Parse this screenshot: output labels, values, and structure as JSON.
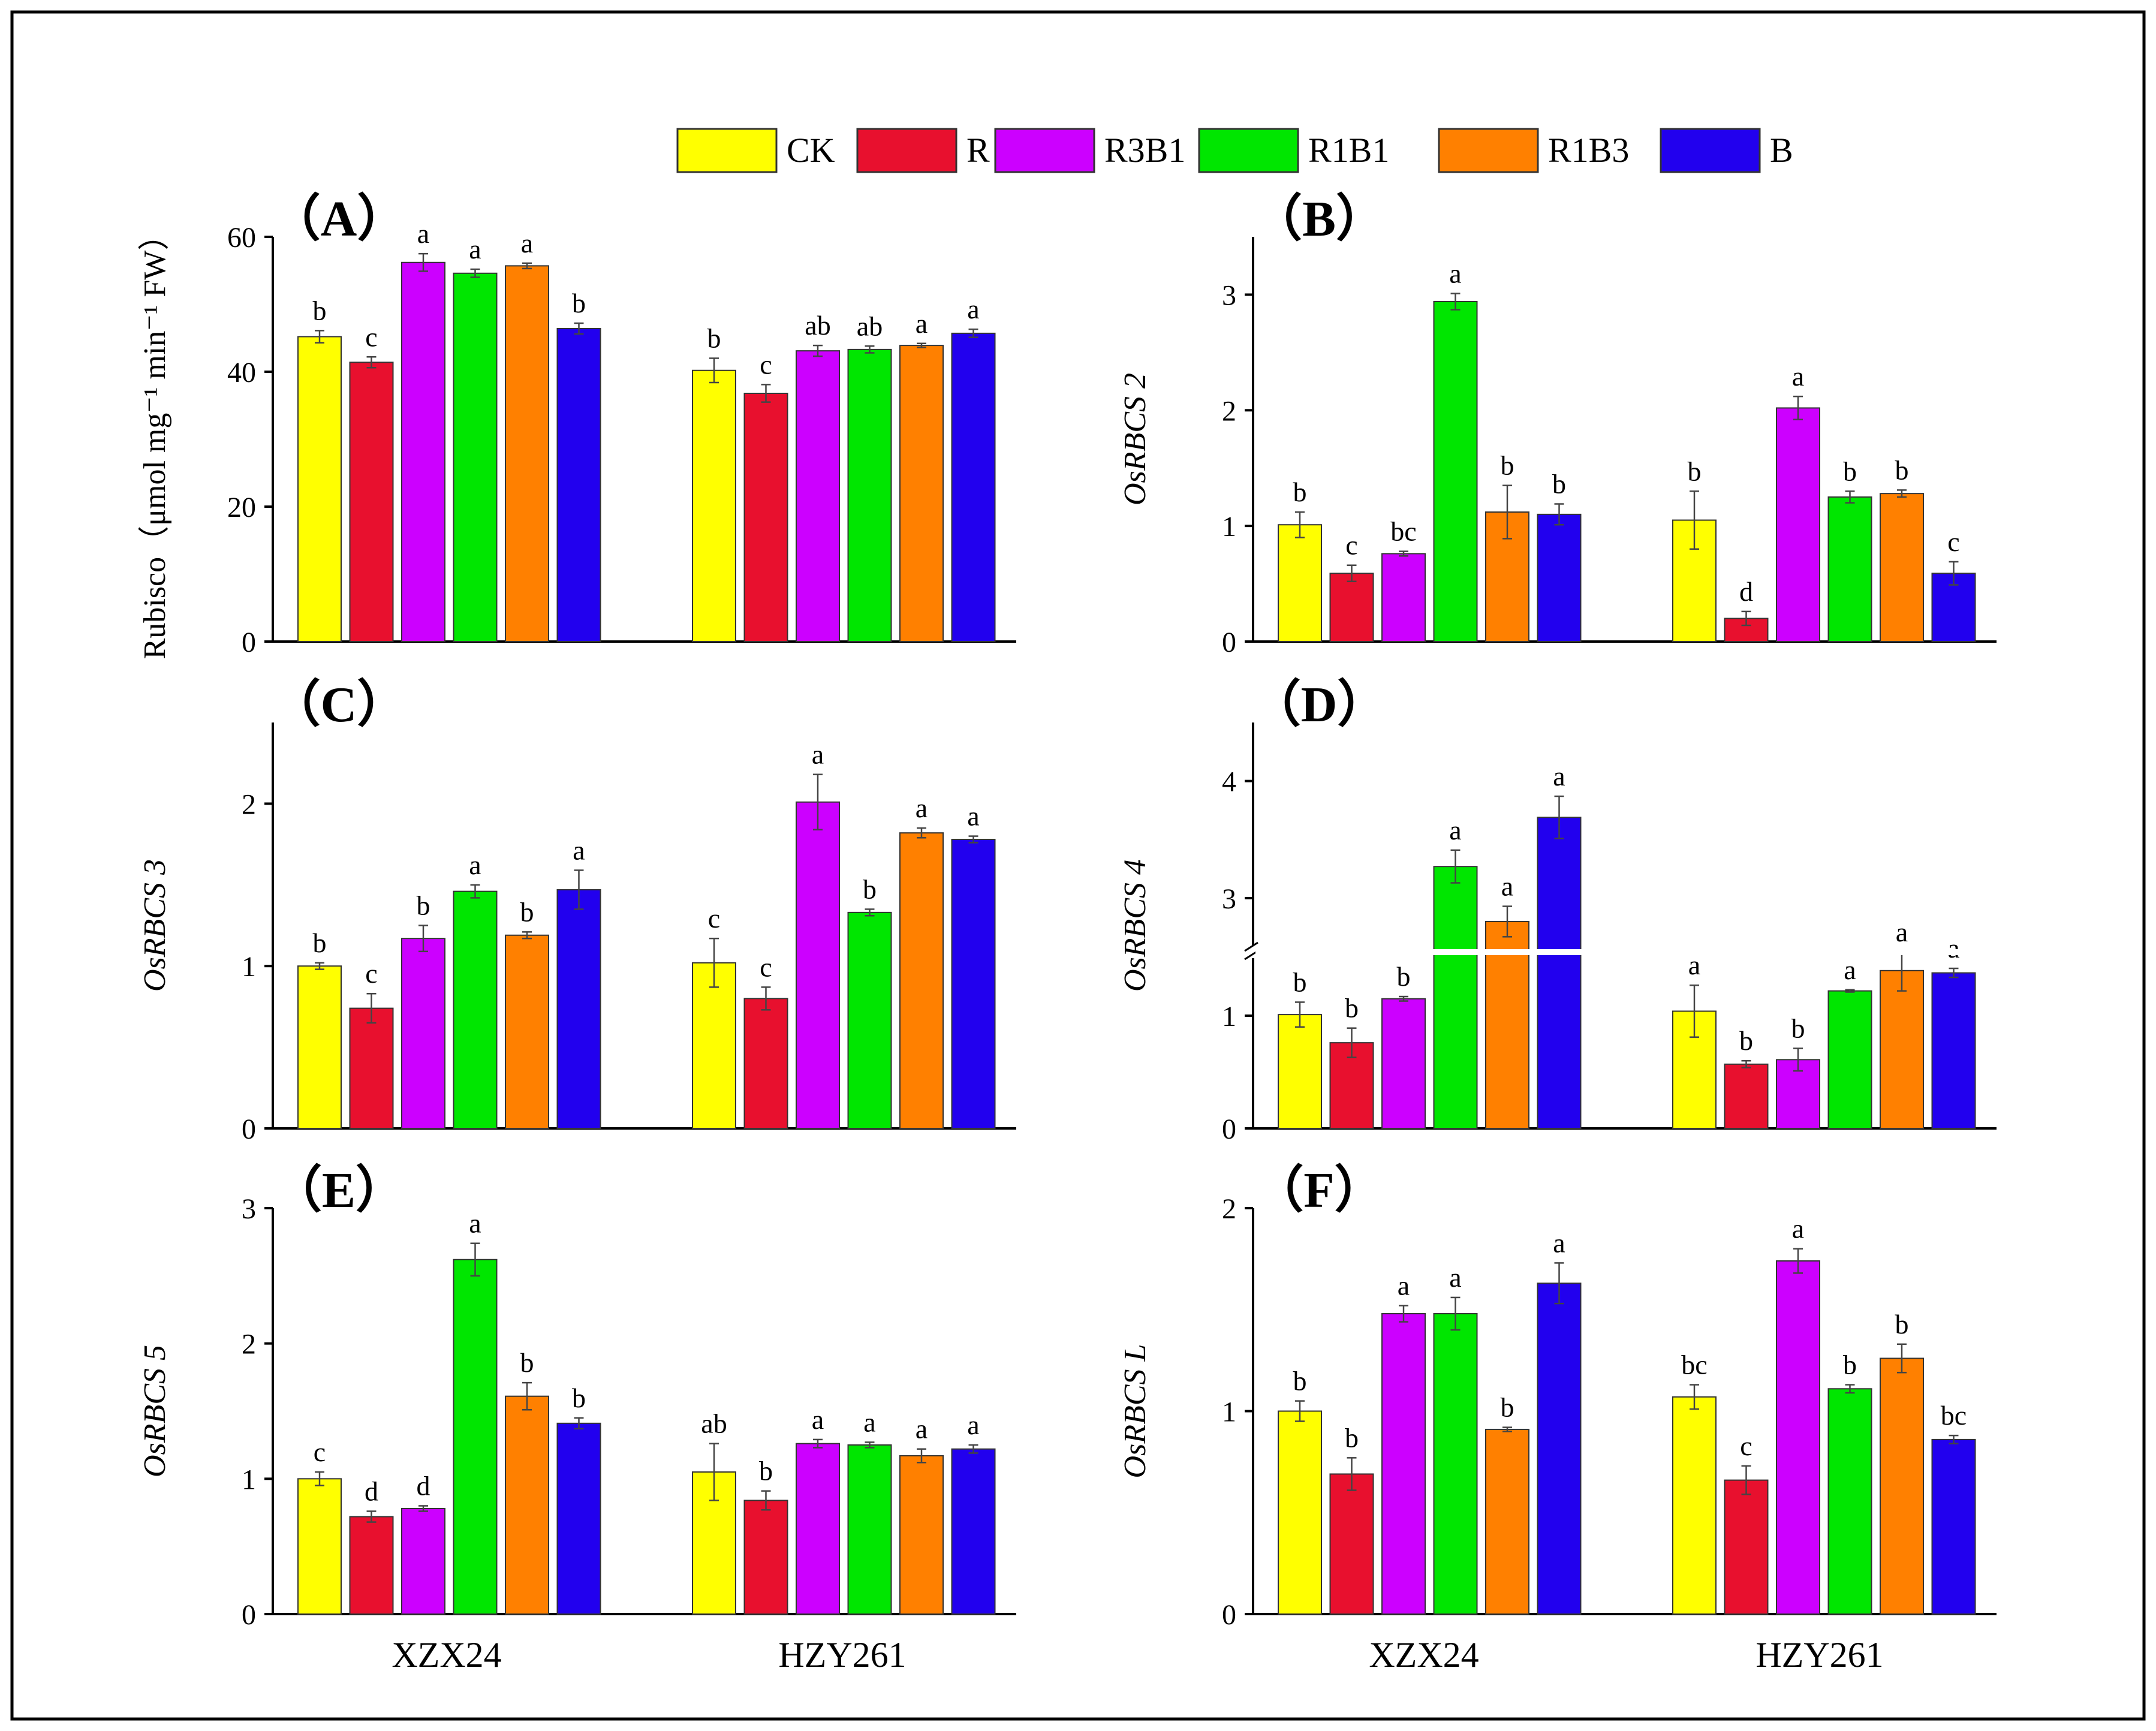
{
  "groups": [
    "XZX24",
    "HZY261"
  ],
  "legend": [
    {
      "label": "CK",
      "color": "#ffff00"
    },
    {
      "label": "R",
      "color": "#e8102e"
    },
    {
      "label": "R3B1",
      "color": "#cc00ff"
    },
    {
      "label": "R1B1",
      "color": "#00e600"
    },
    {
      "label": "R1B3",
      "color": "#ff8000"
    },
    {
      "label": "B",
      "color": "#2200ee"
    }
  ],
  "chart_data": [
    {
      "panel": "（A）",
      "type": "bar",
      "ylabel": "Rubisco（μmol mg⁻¹ min⁻¹ FW）",
      "ylabel_italic": false,
      "ylim": [
        0,
        60
      ],
      "ticks": [
        0,
        20,
        40,
        60
      ],
      "categories": [
        "XZX24",
        "HZY261"
      ],
      "series": [
        {
          "name": "CK",
          "values": [
            45.2,
            40.2
          ],
          "errors": [
            0.9,
            1.8
          ],
          "letters": [
            "b",
            "b"
          ]
        },
        {
          "name": "R",
          "values": [
            41.4,
            36.8
          ],
          "errors": [
            0.8,
            1.3
          ],
          "letters": [
            "c",
            "c"
          ]
        },
        {
          "name": "R3B1",
          "values": [
            56.2,
            43.1
          ],
          "errors": [
            1.3,
            0.8
          ],
          "letters": [
            "a",
            "ab"
          ]
        },
        {
          "name": "R1B1",
          "values": [
            54.6,
            43.3
          ],
          "errors": [
            0.6,
            0.5
          ],
          "letters": [
            "a",
            "ab"
          ]
        },
        {
          "name": "R1B3",
          "values": [
            55.7,
            43.9
          ],
          "errors": [
            0.4,
            0.3
          ],
          "letters": [
            "a",
            "a"
          ]
        },
        {
          "name": "B",
          "values": [
            46.4,
            45.7
          ],
          "errors": [
            0.8,
            0.6
          ],
          "letters": [
            "b",
            "a"
          ]
        }
      ]
    },
    {
      "panel": "（B）",
      "type": "bar",
      "ylabel": "OsRBCS 2",
      "ylabel_italic": true,
      "ylim": [
        0,
        3.5
      ],
      "ticks": [
        0,
        1,
        2,
        3
      ],
      "categories": [
        "XZX24",
        "HZY261"
      ],
      "series": [
        {
          "name": "CK",
          "values": [
            1.01,
            1.05
          ],
          "errors": [
            0.11,
            0.25
          ],
          "letters": [
            "b",
            "b"
          ]
        },
        {
          "name": "R",
          "values": [
            0.59,
            0.2
          ],
          "errors": [
            0.07,
            0.06
          ],
          "letters": [
            "c",
            "d"
          ]
        },
        {
          "name": "R3B1",
          "values": [
            0.76,
            2.02
          ],
          "errors": [
            0.02,
            0.1
          ],
          "letters": [
            "bc",
            "a"
          ]
        },
        {
          "name": "R1B1",
          "values": [
            2.94,
            1.25
          ],
          "errors": [
            0.07,
            0.05
          ],
          "letters": [
            "a",
            "b"
          ]
        },
        {
          "name": "R1B3",
          "values": [
            1.12,
            1.28
          ],
          "errors": [
            0.23,
            0.03
          ],
          "letters": [
            "b",
            "b"
          ]
        },
        {
          "name": "B",
          "values": [
            1.1,
            0.59
          ],
          "errors": [
            0.09,
            0.1
          ],
          "letters": [
            "b",
            "c"
          ]
        }
      ]
    },
    {
      "panel": "（C）",
      "type": "bar",
      "ylabel": "OsRBCS 3",
      "ylabel_italic": true,
      "ylim": [
        0,
        2.5
      ],
      "ticks": [
        0,
        1,
        2
      ],
      "categories": [
        "XZX24",
        "HZY261"
      ],
      "series": [
        {
          "name": "CK",
          "values": [
            1.0,
            1.02
          ],
          "errors": [
            0.02,
            0.15
          ],
          "letters": [
            "b",
            "c"
          ]
        },
        {
          "name": "R",
          "values": [
            0.74,
            0.8
          ],
          "errors": [
            0.09,
            0.07
          ],
          "letters": [
            "c",
            "c"
          ]
        },
        {
          "name": "R3B1",
          "values": [
            1.17,
            2.01
          ],
          "errors": [
            0.08,
            0.17
          ],
          "letters": [
            "b",
            "a"
          ]
        },
        {
          "name": "R1B1",
          "values": [
            1.46,
            1.33
          ],
          "errors": [
            0.04,
            0.02
          ],
          "letters": [
            "a",
            "b"
          ]
        },
        {
          "name": "R1B3",
          "values": [
            1.19,
            1.82
          ],
          "errors": [
            0.02,
            0.03
          ],
          "letters": [
            "b",
            "a"
          ]
        },
        {
          "name": "B",
          "values": [
            1.47,
            1.78
          ],
          "errors": [
            0.12,
            0.02
          ],
          "letters": [
            "a",
            "a"
          ]
        }
      ]
    },
    {
      "panel": "（D）",
      "type": "bar",
      "ylabel": "OsRBCS 4",
      "ylabel_italic": true,
      "ylim": [
        0,
        4.5
      ],
      "ticks": [
        0,
        1,
        2,
        3,
        4
      ],
      "tick_labels": [
        "0",
        "1",
        "",
        "3",
        "4"
      ],
      "axis_break": true,
      "break_interval": [
        1.5,
        2.6
      ],
      "categories": [
        "XZX24",
        "HZY261"
      ],
      "series": [
        {
          "name": "CK",
          "values": [
            1.01,
            1.04
          ],
          "errors": [
            0.11,
            0.23
          ],
          "letters": [
            "b",
            "a"
          ]
        },
        {
          "name": "R",
          "values": [
            0.76,
            0.57
          ],
          "errors": [
            0.13,
            0.03
          ],
          "letters": [
            "b",
            "b"
          ]
        },
        {
          "name": "R3B1",
          "values": [
            1.15,
            0.61
          ],
          "errors": [
            0.02,
            0.1
          ],
          "letters": [
            "b",
            "b"
          ]
        },
        {
          "name": "R1B1",
          "values": [
            3.27,
            1.22
          ],
          "errors": [
            0.14,
            0.01
          ],
          "letters": [
            "a",
            "a"
          ]
        },
        {
          "name": "R1B3",
          "values": [
            2.8,
            1.4
          ],
          "errors": [
            0.13,
            0.18
          ],
          "letters": [
            "a",
            "a"
          ]
        },
        {
          "name": "B",
          "values": [
            3.69,
            1.38
          ],
          "errors": [
            0.18,
            0.04
          ],
          "letters": [
            "a",
            "a"
          ]
        }
      ]
    },
    {
      "panel": "（E）",
      "type": "bar",
      "ylabel": "OsRBCS 5",
      "ylabel_italic": true,
      "ylim": [
        0,
        3
      ],
      "ticks": [
        0,
        1,
        2,
        3
      ],
      "categories": [
        "XZX24",
        "HZY261"
      ],
      "series": [
        {
          "name": "CK",
          "values": [
            1.0,
            1.05
          ],
          "errors": [
            0.05,
            0.21
          ],
          "letters": [
            "c",
            "ab"
          ]
        },
        {
          "name": "R",
          "values": [
            0.72,
            0.84
          ],
          "errors": [
            0.04,
            0.07
          ],
          "letters": [
            "d",
            "b"
          ]
        },
        {
          "name": "R3B1",
          "values": [
            0.78,
            1.26
          ],
          "errors": [
            0.02,
            0.03
          ],
          "letters": [
            "d",
            "a"
          ]
        },
        {
          "name": "R1B1",
          "values": [
            2.62,
            1.25
          ],
          "errors": [
            0.12,
            0.02
          ],
          "letters": [
            "a",
            "a"
          ]
        },
        {
          "name": "R1B3",
          "values": [
            1.61,
            1.17
          ],
          "errors": [
            0.1,
            0.05
          ],
          "letters": [
            "b",
            "a"
          ]
        },
        {
          "name": "B",
          "values": [
            1.41,
            1.22
          ],
          "errors": [
            0.04,
            0.03
          ],
          "letters": [
            "b",
            "a"
          ]
        }
      ]
    },
    {
      "panel": "（F）",
      "type": "bar",
      "ylabel": "OsRBCS L",
      "ylabel_italic": true,
      "ylim": [
        0,
        2
      ],
      "ticks": [
        0,
        1,
        2
      ],
      "categories": [
        "XZX24",
        "HZY261"
      ],
      "series": [
        {
          "name": "CK",
          "values": [
            1.0,
            1.07
          ],
          "errors": [
            0.05,
            0.06
          ],
          "letters": [
            "b",
            "bc"
          ]
        },
        {
          "name": "R",
          "values": [
            0.69,
            0.66
          ],
          "errors": [
            0.08,
            0.07
          ],
          "letters": [
            "b",
            "c"
          ]
        },
        {
          "name": "R3B1",
          "values": [
            1.48,
            1.74
          ],
          "errors": [
            0.04,
            0.06
          ],
          "letters": [
            "a",
            "a"
          ]
        },
        {
          "name": "R1B1",
          "values": [
            1.48,
            1.11
          ],
          "errors": [
            0.08,
            0.02
          ],
          "letters": [
            "a",
            "b"
          ]
        },
        {
          "name": "R1B3",
          "values": [
            0.91,
            1.26
          ],
          "errors": [
            0.01,
            0.07
          ],
          "letters": [
            "b",
            "b"
          ]
        },
        {
          "name": "B",
          "values": [
            1.63,
            0.86
          ],
          "errors": [
            0.1,
            0.02
          ],
          "letters": [
            "a",
            "bc"
          ]
        }
      ]
    }
  ]
}
